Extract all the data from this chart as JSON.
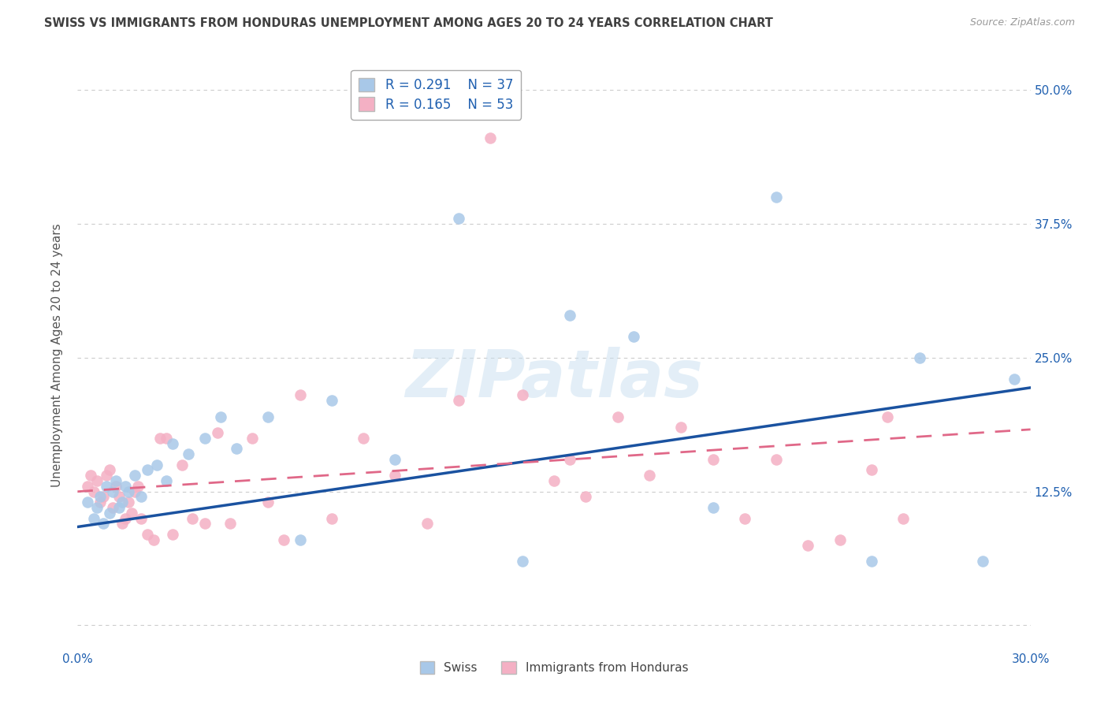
{
  "title": "SWISS VS IMMIGRANTS FROM HONDURAS UNEMPLOYMENT AMONG AGES 20 TO 24 YEARS CORRELATION CHART",
  "source": "Source: ZipAtlas.com",
  "ylabel": "Unemployment Among Ages 20 to 24 years",
  "xlim": [
    0.0,
    0.3
  ],
  "ylim": [
    -0.02,
    0.525
  ],
  "yticks": [
    0.0,
    0.125,
    0.25,
    0.375,
    0.5
  ],
  "ytick_labels": [
    "",
    "12.5%",
    "25.0%",
    "37.5%",
    "50.0%"
  ],
  "xticks": [
    0.0,
    0.05,
    0.1,
    0.15,
    0.2,
    0.25,
    0.3
  ],
  "xtick_labels": [
    "0.0%",
    "",
    "",
    "",
    "",
    "",
    "30.0%"
  ],
  "swiss_color": "#a8c8e8",
  "honduras_color": "#f4b0c4",
  "swiss_line_color": "#1a52a0",
  "honduras_line_color": "#e06888",
  "swiss_R": 0.291,
  "swiss_N": 37,
  "honduras_R": 0.165,
  "honduras_N": 53,
  "legend_label_swiss": "Swiss",
  "legend_label_honduras": "Immigrants from Honduras",
  "watermark": "ZIPatlas",
  "background_color": "#ffffff",
  "grid_color": "#cccccc",
  "title_color": "#404040",
  "axis_label_color": "#2060b0",
  "swiss_x": [
    0.003,
    0.005,
    0.006,
    0.007,
    0.008,
    0.009,
    0.01,
    0.011,
    0.012,
    0.013,
    0.014,
    0.015,
    0.016,
    0.018,
    0.02,
    0.022,
    0.025,
    0.028,
    0.03,
    0.035,
    0.04,
    0.045,
    0.05,
    0.06,
    0.07,
    0.08,
    0.1,
    0.12,
    0.14,
    0.155,
    0.175,
    0.2,
    0.22,
    0.25,
    0.265,
    0.285,
    0.295
  ],
  "swiss_y": [
    0.115,
    0.1,
    0.11,
    0.12,
    0.095,
    0.13,
    0.105,
    0.125,
    0.135,
    0.11,
    0.115,
    0.13,
    0.125,
    0.14,
    0.12,
    0.145,
    0.15,
    0.135,
    0.17,
    0.16,
    0.175,
    0.195,
    0.165,
    0.195,
    0.08,
    0.21,
    0.155,
    0.38,
    0.06,
    0.29,
    0.27,
    0.11,
    0.4,
    0.06,
    0.25,
    0.06,
    0.23
  ],
  "honduras_x": [
    0.003,
    0.004,
    0.005,
    0.006,
    0.007,
    0.008,
    0.009,
    0.01,
    0.011,
    0.012,
    0.013,
    0.014,
    0.015,
    0.016,
    0.017,
    0.018,
    0.019,
    0.02,
    0.022,
    0.024,
    0.026,
    0.028,
    0.03,
    0.033,
    0.036,
    0.04,
    0.044,
    0.048,
    0.055,
    0.06,
    0.065,
    0.07,
    0.08,
    0.09,
    0.1,
    0.11,
    0.12,
    0.13,
    0.14,
    0.15,
    0.155,
    0.16,
    0.17,
    0.18,
    0.19,
    0.2,
    0.21,
    0.22,
    0.23,
    0.24,
    0.25,
    0.255,
    0.26
  ],
  "honduras_y": [
    0.13,
    0.14,
    0.125,
    0.135,
    0.115,
    0.12,
    0.14,
    0.145,
    0.11,
    0.13,
    0.12,
    0.095,
    0.1,
    0.115,
    0.105,
    0.125,
    0.13,
    0.1,
    0.085,
    0.08,
    0.175,
    0.175,
    0.085,
    0.15,
    0.1,
    0.095,
    0.18,
    0.095,
    0.175,
    0.115,
    0.08,
    0.215,
    0.1,
    0.175,
    0.14,
    0.095,
    0.21,
    0.455,
    0.215,
    0.135,
    0.155,
    0.12,
    0.195,
    0.14,
    0.185,
    0.155,
    0.1,
    0.155,
    0.075,
    0.08,
    0.145,
    0.195,
    0.1
  ],
  "swiss_line_x0": 0.0,
  "swiss_line_y0": 0.092,
  "swiss_line_x1": 0.3,
  "swiss_line_y1": 0.222,
  "hon_line_x0": 0.0,
  "hon_line_y0": 0.125,
  "hon_line_x1": 0.3,
  "hon_line_y1": 0.183
}
